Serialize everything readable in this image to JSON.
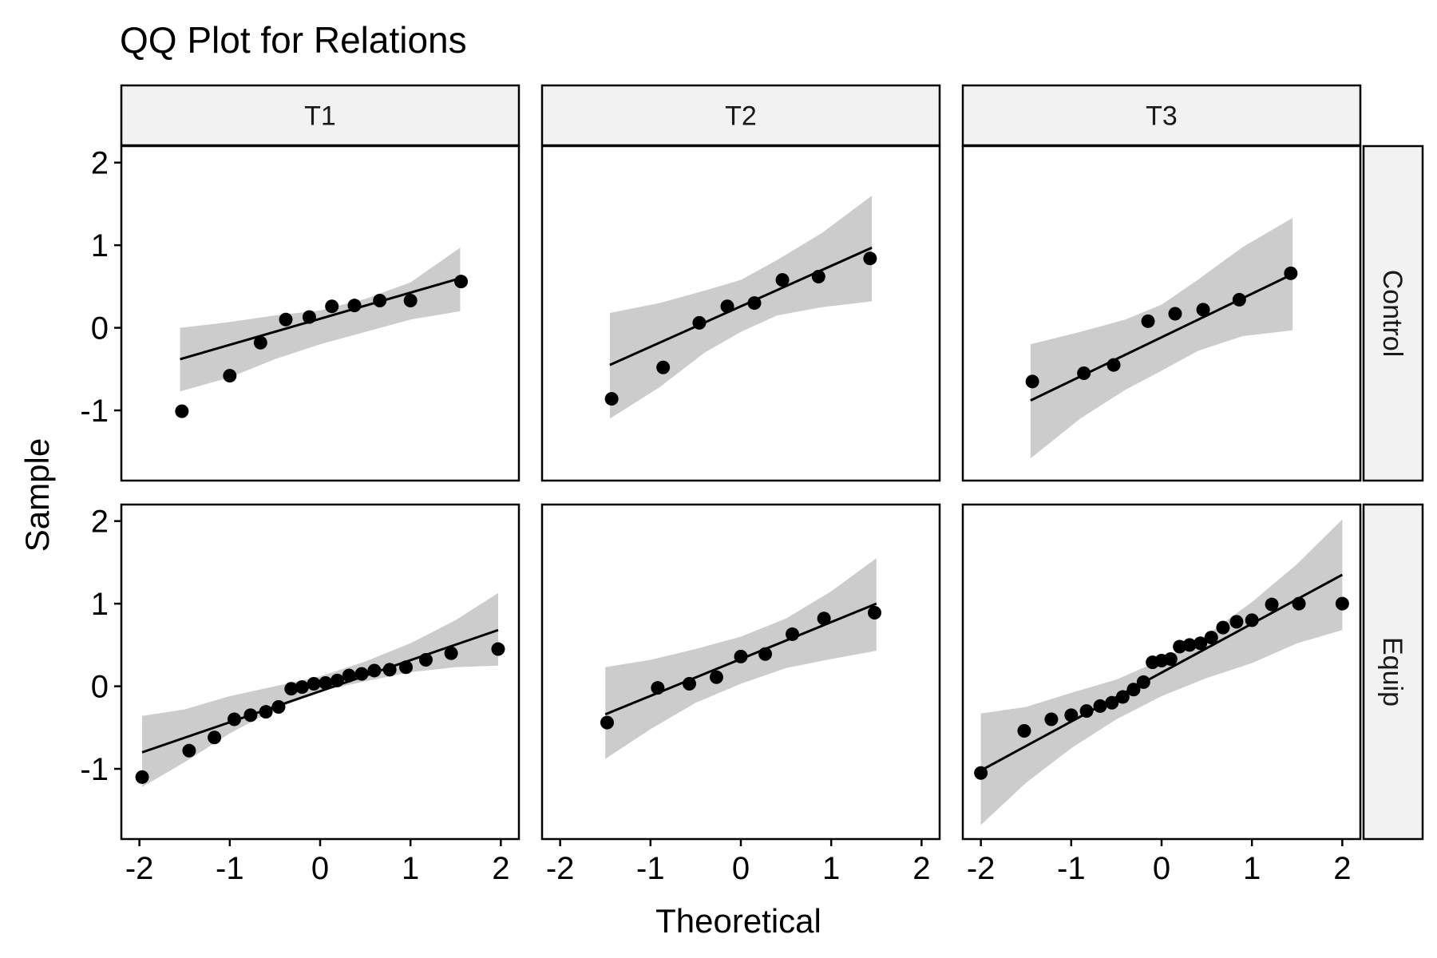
{
  "chart_data": {
    "type": "scatter",
    "title": "QQ Plot for Relations",
    "xlabel": "Theoretical",
    "ylabel": "Sample",
    "xlim": [
      -2.2,
      2.2
    ],
    "ylim": [
      -1.85,
      2.2
    ],
    "x_ticks": [
      -2,
      -1,
      0,
      1,
      2
    ],
    "x_tick_labels": [
      "-2",
      "-1",
      "0",
      "1",
      "2"
    ],
    "y_ticks": [
      -1,
      0,
      1,
      2
    ],
    "y_tick_labels": [
      "-1",
      "0",
      "1",
      "2"
    ],
    "grid": false,
    "columns": [
      "T1",
      "T2",
      "T3"
    ],
    "rows": [
      "Control",
      "Equip"
    ],
    "colors": {
      "points": "#000000",
      "band": "#cccccc",
      "strip": "#f2f2f2",
      "panel_border": "#000000"
    },
    "panels": [
      {
        "column": "T1",
        "row": "Control",
        "points": [
          [
            -1.53,
            -1.01
          ],
          [
            -1.0,
            -0.58
          ],
          [
            -0.66,
            -0.18
          ],
          [
            -0.38,
            0.1
          ],
          [
            -0.12,
            0.13
          ],
          [
            0.13,
            0.26
          ],
          [
            0.38,
            0.27
          ],
          [
            0.66,
            0.33
          ],
          [
            1.0,
            0.33
          ],
          [
            1.56,
            0.56
          ]
        ],
        "line": [
          [
            -1.55,
            -0.38
          ],
          [
            1.55,
            0.6
          ]
        ],
        "band": [
          [
            -1.55,
            0.0,
            -0.77
          ],
          [
            -1.0,
            0.07,
            -0.6
          ],
          [
            -0.5,
            0.15,
            -0.38
          ],
          [
            0.0,
            0.21,
            -0.2
          ],
          [
            0.5,
            0.35,
            -0.05
          ],
          [
            1.0,
            0.55,
            0.1
          ],
          [
            1.55,
            0.97,
            0.2
          ]
        ]
      },
      {
        "column": "T2",
        "row": "Control",
        "points": [
          [
            -1.43,
            -0.86
          ],
          [
            -0.86,
            -0.48
          ],
          [
            -0.46,
            0.06
          ],
          [
            -0.15,
            0.26
          ],
          [
            0.15,
            0.3
          ],
          [
            0.46,
            0.58
          ],
          [
            0.86,
            0.62
          ],
          [
            1.43,
            0.84
          ]
        ],
        "line": [
          [
            -1.45,
            -0.45
          ],
          [
            1.45,
            0.97
          ]
        ],
        "band": [
          [
            -1.45,
            0.18,
            -1.1
          ],
          [
            -0.9,
            0.3,
            -0.72
          ],
          [
            -0.4,
            0.45,
            -0.3
          ],
          [
            0.0,
            0.58,
            -0.05
          ],
          [
            0.4,
            0.82,
            0.15
          ],
          [
            0.9,
            1.15,
            0.25
          ],
          [
            1.45,
            1.6,
            0.32
          ]
        ]
      },
      {
        "column": "T3",
        "row": "Control",
        "points": [
          [
            -1.43,
            -0.65
          ],
          [
            -0.86,
            -0.55
          ],
          [
            -0.53,
            -0.45
          ],
          [
            -0.15,
            0.08
          ],
          [
            0.15,
            0.17
          ],
          [
            0.46,
            0.22
          ],
          [
            0.86,
            0.34
          ],
          [
            1.43,
            0.66
          ]
        ],
        "line": [
          [
            -1.45,
            -0.88
          ],
          [
            1.45,
            0.65
          ]
        ],
        "band": [
          [
            -1.45,
            -0.2,
            -1.58
          ],
          [
            -0.9,
            -0.05,
            -1.1
          ],
          [
            -0.4,
            0.1,
            -0.75
          ],
          [
            0.0,
            0.28,
            -0.52
          ],
          [
            0.4,
            0.58,
            -0.28
          ],
          [
            0.9,
            0.98,
            -0.1
          ],
          [
            1.45,
            1.33,
            -0.03
          ]
        ]
      },
      {
        "column": "T1",
        "row": "Equip",
        "points": [
          [
            -1.97,
            -1.1
          ],
          [
            -1.45,
            -0.78
          ],
          [
            -1.17,
            -0.62
          ],
          [
            -0.95,
            -0.4
          ],
          [
            -0.77,
            -0.35
          ],
          [
            -0.6,
            -0.31
          ],
          [
            -0.46,
            -0.25
          ],
          [
            -0.32,
            -0.03
          ],
          [
            -0.2,
            -0.01
          ],
          [
            -0.07,
            0.03
          ],
          [
            0.06,
            0.04
          ],
          [
            0.19,
            0.07
          ],
          [
            0.32,
            0.13
          ],
          [
            0.46,
            0.15
          ],
          [
            0.6,
            0.19
          ],
          [
            0.77,
            0.2
          ],
          [
            0.95,
            0.23
          ],
          [
            1.17,
            0.32
          ],
          [
            1.45,
            0.4
          ],
          [
            1.97,
            0.45
          ]
        ],
        "line": [
          [
            -1.97,
            -0.8
          ],
          [
            1.97,
            0.68
          ]
        ],
        "band": [
          [
            -1.97,
            -0.36,
            -1.22
          ],
          [
            -1.5,
            -0.28,
            -0.92
          ],
          [
            -1.0,
            -0.12,
            -0.57
          ],
          [
            -0.5,
            0.0,
            -0.28
          ],
          [
            0.0,
            0.12,
            -0.06
          ],
          [
            0.5,
            0.3,
            0.06
          ],
          [
            1.0,
            0.52,
            0.17
          ],
          [
            1.5,
            0.8,
            0.23
          ],
          [
            1.97,
            1.13,
            0.25
          ]
        ]
      },
      {
        "column": "T2",
        "row": "Equip",
        "points": [
          [
            -1.48,
            -0.44
          ],
          [
            -0.92,
            -0.02
          ],
          [
            -0.57,
            0.03
          ],
          [
            -0.27,
            0.11
          ],
          [
            0.0,
            0.36
          ],
          [
            0.27,
            0.39
          ],
          [
            0.57,
            0.63
          ],
          [
            0.92,
            0.82
          ],
          [
            1.48,
            0.89
          ]
        ],
        "line": [
          [
            -1.5,
            -0.34
          ],
          [
            1.5,
            1.0
          ]
        ],
        "band": [
          [
            -1.5,
            0.23,
            -0.88
          ],
          [
            -1.0,
            0.32,
            -0.52
          ],
          [
            -0.5,
            0.45,
            -0.2
          ],
          [
            0.0,
            0.6,
            0.03
          ],
          [
            0.5,
            0.82,
            0.22
          ],
          [
            1.0,
            1.15,
            0.33
          ],
          [
            1.5,
            1.55,
            0.43
          ]
        ]
      },
      {
        "column": "T3",
        "row": "Equip",
        "points": [
          [
            -2.0,
            -1.05
          ],
          [
            -1.52,
            -0.54
          ],
          [
            -1.22,
            -0.4
          ],
          [
            -1.0,
            -0.35
          ],
          [
            -0.83,
            -0.3
          ],
          [
            -0.68,
            -0.24
          ],
          [
            -0.55,
            -0.2
          ],
          [
            -0.43,
            -0.13
          ],
          [
            -0.31,
            -0.04
          ],
          [
            -0.2,
            0.05
          ],
          [
            -0.1,
            0.29
          ],
          [
            0.0,
            0.31
          ],
          [
            0.1,
            0.33
          ],
          [
            0.2,
            0.48
          ],
          [
            0.31,
            0.5
          ],
          [
            0.43,
            0.52
          ],
          [
            0.55,
            0.59
          ],
          [
            0.68,
            0.71
          ],
          [
            0.83,
            0.78
          ],
          [
            1.0,
            0.8
          ],
          [
            1.22,
            0.99
          ],
          [
            1.52,
            1.0
          ],
          [
            2.0,
            1.0
          ]
        ],
        "line": [
          [
            -2.0,
            -1.02
          ],
          [
            2.0,
            1.35
          ]
        ],
        "band": [
          [
            -2.0,
            -0.33,
            -1.68
          ],
          [
            -1.5,
            -0.25,
            -1.17
          ],
          [
            -1.0,
            -0.08,
            -0.75
          ],
          [
            -0.5,
            0.08,
            -0.4
          ],
          [
            0.0,
            0.32,
            -0.12
          ],
          [
            0.5,
            0.62,
            0.1
          ],
          [
            1.0,
            1.02,
            0.28
          ],
          [
            1.5,
            1.48,
            0.52
          ],
          [
            2.0,
            2.02,
            0.68
          ]
        ]
      }
    ]
  }
}
